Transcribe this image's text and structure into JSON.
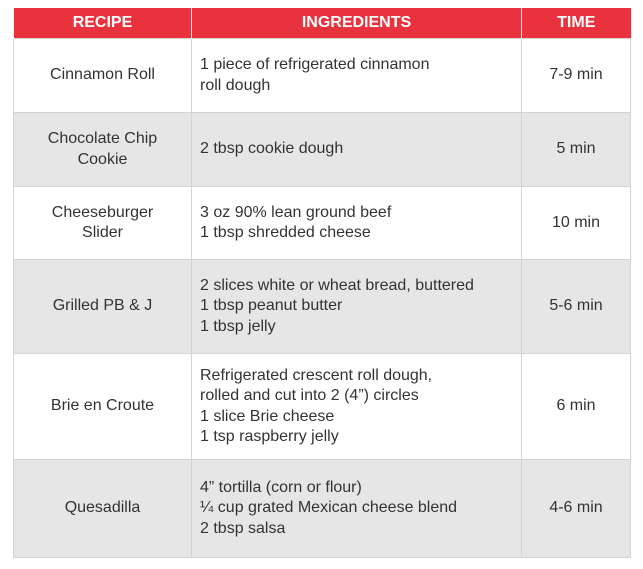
{
  "table": {
    "header": [
      "RECIPE",
      "INGREDIENTS",
      "TIME"
    ],
    "rows": [
      {
        "recipe": [
          "Cinnamon Roll"
        ],
        "ingredients": [
          "1 piece of refrigerated cinnamon",
          "roll dough"
        ],
        "time": "7-9 min"
      },
      {
        "recipe": [
          "Chocolate Chip",
          "Cookie"
        ],
        "ingredients": [
          "2 tbsp cookie dough"
        ],
        "time": "5 min"
      },
      {
        "recipe": [
          "Cheeseburger",
          "Slider"
        ],
        "ingredients": [
          "3 oz 90% lean ground beef",
          "1 tbsp shredded cheese"
        ],
        "time": "10 min"
      },
      {
        "recipe": [
          "Grilled PB & J"
        ],
        "ingredients": [
          "2 slices white or wheat bread, buttered",
          "1 tbsp peanut butter",
          "1 tbsp jelly"
        ],
        "time": "5-6 min"
      },
      {
        "recipe": [
          "Brie en Croute"
        ],
        "ingredients": [
          "Refrigerated crescent roll dough,",
          "rolled and cut into 2 (4”) circles",
          "1 slice Brie cheese",
          "1 tsp raspberry jelly"
        ],
        "time": "6 min"
      },
      {
        "recipe": [
          "Quesadilla"
        ],
        "ingredients": [
          "4” tortilla (corn or flour)",
          "¼ cup grated Mexican cheese blend",
          "2 tbsp salsa"
        ],
        "time": "4-6 min"
      }
    ]
  }
}
